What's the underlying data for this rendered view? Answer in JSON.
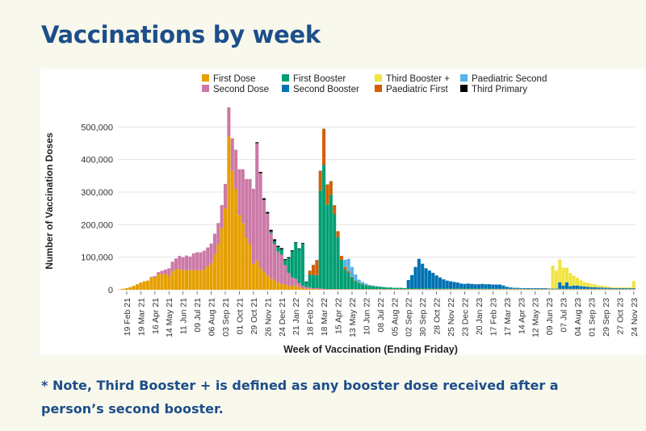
{
  "page": {
    "title": "Vaccinations by week",
    "note": "* Note, Third Booster + is defined as any booster dose received after a person’s second booster."
  },
  "chart_data": {
    "type": "bar",
    "stacked": true,
    "ylabel": "Number of Vaccination Doses",
    "xlabel": "Week of Vaccination (Ending Friday)",
    "ylim": [
      0,
      580000
    ],
    "yticks": [
      0,
      100000,
      200000,
      300000,
      400000,
      500000
    ],
    "ytick_labels": [
      "0",
      "100,000",
      "200,000",
      "300,000",
      "400,000",
      "500,000"
    ],
    "grid": true,
    "legend_position": "top",
    "xtick_labels": [
      "19 Feb 21",
      "19 Mar 21",
      "16 Apr 21",
      "14 May 21",
      "11 Jun 21",
      "09 Jul 21",
      "06 Aug 21",
      "03 Sep 21",
      "01 Oct 21",
      "29 Oct 21",
      "26 Nov 21",
      "24 Dec 21",
      "21 Jan 22",
      "18 Feb 22",
      "18 Mar 22",
      "15 Apr 22",
      "13 May 22",
      "10 Jun 22",
      "08 Jul 22",
      "05 Aug 22",
      "02 Sep 22",
      "30 Sep 22",
      "28 Oct 22",
      "25 Nov 22",
      "23 Dec 22",
      "20 Jan 23",
      "17 Feb 23",
      "17 Mar 23",
      "14 Apr 23",
      "12 May 23",
      "09 Jun 23",
      "07 Jul 23",
      "04 Aug 23",
      "01 Sep 23",
      "29 Sep 23",
      "27 Oct 23",
      "24 Nov 23"
    ],
    "series": [
      {
        "name": "First Dose",
        "color": "#e69f00",
        "values": [
          1000,
          3000,
          5000,
          8000,
          12000,
          17000,
          22000,
          26000,
          28000,
          38000,
          38000,
          48000,
          48000,
          48000,
          42000,
          56000,
          62000,
          64000,
          60000,
          60000,
          60000,
          60000,
          60000,
          60000,
          62000,
          72000,
          82000,
          110000,
          140000,
          190000,
          250000,
          470000,
          365000,
          310000,
          230000,
          205000,
          160000,
          140000,
          80000,
          90000,
          68000,
          56000,
          44000,
          34000,
          30000,
          22000,
          18000,
          16000,
          12000,
          10000,
          14000,
          8000,
          4000,
          3000,
          3000,
          2000,
          2000,
          2000,
          1000,
          1000,
          1000,
          1000,
          1000,
          1000,
          1000,
          1000,
          1000,
          1000,
          1000,
          1000,
          1000,
          1000,
          1000,
          1000,
          1000,
          1000,
          1000,
          1000,
          1000,
          1000,
          1000,
          1000,
          1000,
          1000,
          1000,
          1000,
          1000,
          1000,
          1000,
          1000,
          1000,
          1000,
          1000,
          1000,
          1000,
          1000,
          1000,
          1000,
          1000,
          1000,
          1000,
          1000,
          1000,
          1000,
          1000,
          1000,
          1000,
          1000,
          1000,
          1000,
          1000,
          1000,
          1000,
          1000,
          1000,
          1000,
          1000,
          1000,
          1000,
          1000,
          1000,
          1000,
          1000,
          1000,
          1000,
          1000,
          1000,
          1000,
          1000,
          1000,
          1000,
          1000,
          1000,
          1000,
          1000,
          1000,
          1000,
          1000,
          1000,
          1000,
          1000,
          1000,
          1000,
          1000,
          1000,
          1000,
          1000
        ]
      },
      {
        "name": "Second Dose",
        "color": "#cc79a7",
        "values": [
          0,
          0,
          0,
          0,
          0,
          0,
          0,
          0,
          0,
          2000,
          4000,
          6000,
          10000,
          14000,
          24000,
          30000,
          34000,
          40000,
          40000,
          45000,
          42000,
          52000,
          55000,
          55000,
          58000,
          58000,
          60000,
          62000,
          65000,
          70000,
          75000,
          90000,
          100000,
          120000,
          140000,
          165000,
          180000,
          200000,
          230000,
          360000,
          290000,
          220000,
          190000,
          140000,
          110000,
          95000,
          90000,
          60000,
          40000,
          28000,
          20000,
          12000,
          8000,
          5000,
          4000,
          3000,
          3000,
          2000,
          2000,
          1000,
          1000,
          1000,
          1000,
          1000,
          1000,
          1000,
          1000,
          1000,
          1000,
          1000,
          1000,
          1000,
          1000,
          1000,
          1000,
          1000,
          1000,
          1000,
          1000,
          1000,
          1000,
          1000,
          1000,
          1000,
          1000,
          1000,
          1000,
          1000,
          1000,
          1000,
          1000,
          1000,
          1000,
          1000,
          1000,
          1000,
          1000,
          1000,
          1000,
          1000,
          1000,
          1000,
          1000,
          1000,
          1000,
          1000,
          1000,
          1000,
          1000,
          1000,
          1000,
          1000,
          1000,
          1000,
          1000,
          1000,
          1000,
          1000,
          1000,
          1000,
          1000,
          1000,
          1000,
          1000,
          1000,
          1000,
          1000,
          1000,
          1000,
          1000,
          1000,
          1000,
          1000,
          1000,
          1000,
          1000,
          1000,
          1000,
          1000,
          1000,
          1000,
          1000,
          1000,
          1000,
          1000,
          1000,
          1000
        ]
      },
      {
        "name": "First Booster",
        "color": "#009e73",
        "values": [
          0,
          0,
          0,
          0,
          0,
          0,
          0,
          0,
          0,
          0,
          0,
          0,
          0,
          0,
          0,
          0,
          0,
          0,
          0,
          0,
          0,
          0,
          0,
          0,
          0,
          0,
          0,
          0,
          0,
          0,
          0,
          0,
          0,
          0,
          0,
          0,
          0,
          0,
          0,
          0,
          0,
          0,
          0,
          5000,
          10000,
          14000,
          16000,
          15000,
          45000,
          80000,
          110000,
          105000,
          130000,
          15000,
          40000,
          40000,
          40000,
          300000,
          380000,
          260000,
          290000,
          230000,
          160000,
          90000,
          60000,
          50000,
          35000,
          25000,
          18000,
          15000,
          12000,
          10000,
          9000,
          8000,
          7000,
          6000,
          5000,
          5000,
          4000,
          4000,
          4000,
          3000,
          3000,
          3000,
          3000,
          3000,
          3000,
          2000,
          2000,
          2000,
          2000,
          2000,
          2000,
          2000,
          2000,
          2000,
          2000,
          2000,
          2000,
          2000,
          2000,
          2000,
          2000,
          2000,
          2000,
          2000,
          1000,
          1000,
          1000,
          1000,
          1000,
          1000,
          1000,
          1000,
          1000,
          1000,
          1000,
          1000,
          1000,
          1000,
          1000,
          1000,
          1000,
          1000,
          1000,
          1000,
          1000,
          1000,
          1000,
          1000,
          1000,
          1000,
          1000,
          1000,
          1000,
          1000,
          1000,
          1000,
          1000,
          1000,
          1000,
          1000,
          1000,
          1000,
          1000,
          1000,
          1000,
          1000,
          1000
        ]
      },
      {
        "name": "Second Booster",
        "color": "#0072b2",
        "values": [
          0,
          0,
          0,
          0,
          0,
          0,
          0,
          0,
          0,
          0,
          0,
          0,
          0,
          0,
          0,
          0,
          0,
          0,
          0,
          0,
          0,
          0,
          0,
          0,
          0,
          0,
          0,
          0,
          0,
          0,
          0,
          0,
          0,
          0,
          0,
          0,
          0,
          0,
          0,
          0,
          0,
          0,
          0,
          0,
          0,
          0,
          0,
          0,
          0,
          0,
          0,
          0,
          0,
          0,
          0,
          0,
          0,
          0,
          0,
          0,
          0,
          0,
          0,
          0,
          0,
          0,
          0,
          0,
          0,
          0,
          0,
          0,
          0,
          0,
          0,
          0,
          0,
          0,
          0,
          0,
          0,
          0,
          25000,
          40000,
          65000,
          90000,
          75000,
          62000,
          55000,
          48000,
          40000,
          34000,
          28000,
          24000,
          22000,
          20000,
          18000,
          15000,
          14000,
          15000,
          14000,
          13000,
          13000,
          14000,
          13000,
          13000,
          13000,
          13000,
          13000,
          10000,
          6000,
          4000,
          3000,
          3000,
          2000,
          2000,
          2000,
          2000,
          2000,
          2000,
          2000,
          2000,
          1000,
          1000,
          1000,
          20000,
          10000,
          20000,
          8000,
          10000,
          10000,
          8000,
          7000,
          6000,
          5000,
          5000,
          4000,
          4000,
          3000,
          3000,
          2000,
          2000,
          2000,
          2000,
          2000,
          2000,
          2000,
          1000,
          1000,
          1000
        ]
      },
      {
        "name": "Third Booster +",
        "color": "#f0e442",
        "values": [
          0,
          0,
          0,
          0,
          0,
          0,
          0,
          0,
          0,
          0,
          0,
          0,
          0,
          0,
          0,
          0,
          0,
          0,
          0,
          0,
          0,
          0,
          0,
          0,
          0,
          0,
          0,
          0,
          0,
          0,
          0,
          0,
          0,
          0,
          0,
          0,
          0,
          0,
          0,
          0,
          0,
          0,
          0,
          0,
          0,
          0,
          0,
          0,
          0,
          0,
          0,
          0,
          0,
          0,
          0,
          0,
          0,
          0,
          0,
          0,
          0,
          0,
          0,
          0,
          0,
          0,
          0,
          0,
          0,
          0,
          0,
          0,
          0,
          0,
          0,
          0,
          0,
          0,
          0,
          0,
          0,
          0,
          0,
          0,
          0,
          0,
          0,
          0,
          0,
          0,
          0,
          0,
          0,
          0,
          0,
          0,
          0,
          0,
          0,
          0,
          0,
          0,
          0,
          0,
          0,
          0,
          0,
          0,
          0,
          0,
          0,
          0,
          0,
          0,
          0,
          0,
          0,
          0,
          0,
          0,
          0,
          0,
          0,
          70000,
          55000,
          70000,
          55000,
          45000,
          40000,
          30000,
          24000,
          18000,
          14000,
          12000,
          10000,
          8000,
          6000,
          5000,
          4000,
          3000,
          3000,
          2000,
          2000,
          2000,
          2000,
          2000,
          22000,
          26000
        ]
      },
      {
        "name": "Paediatric First",
        "color": "#d55e00",
        "values": [
          0,
          0,
          0,
          0,
          0,
          0,
          0,
          0,
          0,
          0,
          0,
          0,
          0,
          0,
          0,
          0,
          0,
          0,
          0,
          0,
          0,
          0,
          0,
          0,
          0,
          0,
          0,
          0,
          0,
          0,
          0,
          0,
          0,
          0,
          0,
          0,
          0,
          0,
          0,
          0,
          0,
          0,
          0,
          0,
          0,
          0,
          0,
          0,
          0,
          0,
          0,
          0,
          0,
          0,
          10000,
          30000,
          45000,
          60000,
          110000,
          60000,
          40000,
          28000,
          18000,
          12000,
          8000,
          5000,
          3000,
          2000,
          1000,
          1000,
          1000,
          1000,
          1000,
          0,
          0,
          0,
          0,
          0,
          0,
          0,
          0,
          0,
          0,
          0,
          0,
          0,
          0,
          0,
          0,
          0,
          0,
          0,
          0,
          0,
          0,
          0,
          0,
          0,
          0,
          0,
          0,
          0,
          0,
          0,
          0,
          0,
          0,
          0,
          0,
          0,
          0,
          0,
          0,
          0,
          0,
          0,
          0,
          0,
          0,
          0,
          0,
          0,
          0,
          0,
          0,
          0,
          0,
          0,
          0,
          0,
          0,
          0,
          0,
          0,
          0,
          0,
          0,
          0,
          0,
          0,
          0,
          0,
          0,
          0,
          0,
          0,
          0,
          0
        ]
      },
      {
        "name": "Paediatric Second",
        "color": "#56b4e9",
        "values": [
          0,
          0,
          0,
          0,
          0,
          0,
          0,
          0,
          0,
          0,
          0,
          0,
          0,
          0,
          0,
          0,
          0,
          0,
          0,
          0,
          0,
          0,
          0,
          0,
          0,
          0,
          0,
          0,
          0,
          0,
          0,
          0,
          0,
          0,
          0,
          0,
          0,
          0,
          0,
          0,
          0,
          0,
          0,
          0,
          0,
          0,
          0,
          0,
          0,
          0,
          0,
          0,
          0,
          0,
          0,
          0,
          0,
          0,
          0,
          0,
          0,
          0,
          0,
          0,
          22000,
          38000,
          30000,
          18000,
          10000,
          6000,
          4000,
          2000,
          1000,
          1000,
          1000,
          1000,
          0,
          0,
          0,
          0,
          0,
          0,
          0,
          0,
          0,
          0,
          0,
          0,
          0,
          0,
          0,
          0,
          0,
          0,
          0,
          0,
          0,
          0,
          0,
          0,
          0,
          0,
          0,
          0,
          0,
          0,
          0,
          0,
          0,
          0,
          0,
          0,
          0,
          0,
          0,
          0,
          0,
          0,
          0,
          0,
          0,
          0,
          0,
          0,
          0,
          0,
          0,
          0,
          0,
          0,
          0,
          0,
          0,
          0,
          0,
          0,
          0,
          0,
          0,
          0,
          0,
          0,
          0,
          0,
          0,
          0
        ]
      },
      {
        "name": "Third Primary",
        "color": "#000000",
        "values": [
          0,
          0,
          0,
          0,
          0,
          0,
          0,
          0,
          0,
          0,
          0,
          0,
          0,
          0,
          0,
          0,
          0,
          0,
          0,
          0,
          0,
          0,
          0,
          0,
          0,
          0,
          0,
          0,
          0,
          0,
          0,
          0,
          0,
          0,
          0,
          0,
          0,
          0,
          0,
          3000,
          4000,
          5000,
          5000,
          5000,
          5000,
          4000,
          4000,
          3000,
          3000,
          3000,
          2000,
          2000,
          2000,
          2000,
          1000,
          1000,
          1000,
          1000,
          1000,
          1000,
          1000,
          0,
          0,
          0,
          0,
          0,
          0,
          0,
          0,
          0,
          0,
          0,
          0,
          0,
          0,
          0,
          0,
          0,
          0,
          0,
          0,
          0,
          0,
          0,
          0,
          0,
          0,
          0,
          0,
          0,
          0,
          0,
          0,
          0,
          0,
          0,
          0,
          0,
          0,
          0,
          0,
          0,
          0,
          0,
          0,
          0,
          0,
          0,
          0,
          0,
          0,
          0,
          0,
          0,
          0,
          0,
          0,
          0,
          0,
          0,
          0,
          0,
          0,
          0,
          0,
          0,
          0,
          0,
          0,
          0,
          0,
          0,
          0,
          0,
          0,
          0,
          0,
          0,
          0,
          0,
          0,
          0,
          0,
          0,
          0,
          0
        ]
      }
    ],
    "legend_order": [
      "First Dose",
      "First Booster",
      "Third Booster +",
      "Paediatric Second",
      "Second Dose",
      "Second Booster",
      "Paediatric First",
      "Third Primary"
    ]
  }
}
